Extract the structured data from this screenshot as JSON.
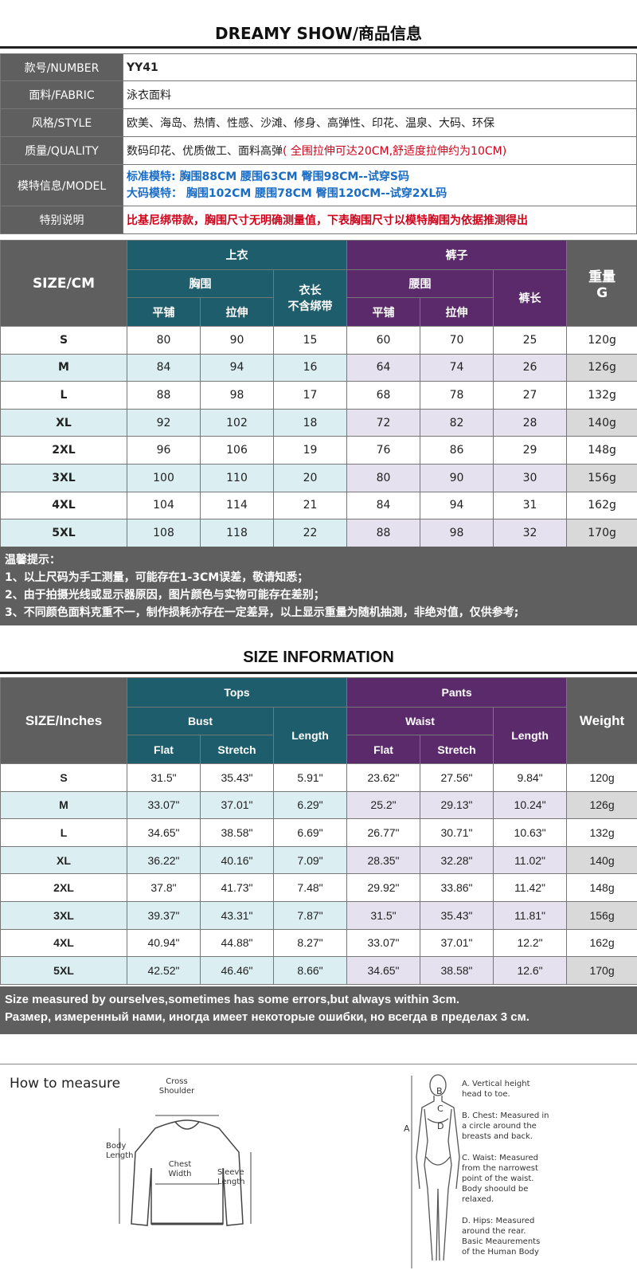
{
  "title_cn": "DREAMY SHOW/商品信息",
  "info": [
    {
      "label": "款号/NUMBER",
      "value": "YY41"
    },
    {
      "label": "面料/FABRIC",
      "value": "泳衣面料"
    },
    {
      "label": "风格/STYLE",
      "value": "欧美、海岛、热情、性感、沙滩、修身、高弹性、印花、温泉、大码、环保"
    },
    {
      "label": "质量/QUALITY",
      "value": "数码印花、优质做工、面料高弹",
      "value_red": "( 全围拉伸可达20CM,舒适度拉伸约为10CM)"
    },
    {
      "label": "模特信息/MODEL",
      "value": "标准模特: 胸围88CM 腰围63CM 臀围98CM--试穿S码",
      "value2": "大码模特：  胸围102CM 腰围78CM 臀围120CM--试穿2XL码"
    },
    {
      "label": "特别说明",
      "value": "比基尼绑带款，胸围尺寸无明确测量值，下表胸围尺寸以模特胸围为依据推测得出"
    }
  ],
  "cm_table": {
    "size_header": "SIZE/CM",
    "tops": "上衣",
    "bust": "胸围",
    "length_l1": "衣长",
    "length_l2": "不含绑带",
    "pants": "裤子",
    "waist": "腰围",
    "pants_length": "裤长",
    "weight_l1": "重量",
    "weight_l2": "G",
    "flat": "平铺",
    "stretch": "拉伸",
    "rows": [
      [
        "S",
        "80",
        "90",
        "15",
        "60",
        "70",
        "25",
        "120g"
      ],
      [
        "M",
        "84",
        "94",
        "16",
        "64",
        "74",
        "26",
        "126g"
      ],
      [
        "L",
        "88",
        "98",
        "17",
        "68",
        "78",
        "27",
        "132g"
      ],
      [
        "XL",
        "92",
        "102",
        "18",
        "72",
        "82",
        "28",
        "140g"
      ],
      [
        "2XL",
        "96",
        "106",
        "19",
        "76",
        "86",
        "29",
        "148g"
      ],
      [
        "3XL",
        "100",
        "110",
        "20",
        "80",
        "90",
        "30",
        "156g"
      ],
      [
        "4XL",
        "104",
        "114",
        "21",
        "84",
        "94",
        "31",
        "162g"
      ],
      [
        "5XL",
        "108",
        "118",
        "22",
        "88",
        "98",
        "32",
        "170g"
      ]
    ]
  },
  "notes_cn": [
    "温馨提示：",
    "1、以上尺码为手工测量，可能存在1-3CM误差，敬请知悉；",
    "2、由于拍摄光线或显示器原因，图片颜色与实物可能存在差别；",
    "3、不同颜色面料克重不一，制作损耗亦存在一定差异，以上显示重量为随机抽测，非绝对值，仅供参考;"
  ],
  "title_en": "SIZE INFORMATION",
  "in_table": {
    "size_header": "SIZE/Inches",
    "tops": "Tops",
    "bust": "Bust",
    "length": "Length",
    "pants": "Pants",
    "waist": "Waist",
    "pants_length": "Length",
    "weight": "Weight",
    "flat": "Flat",
    "stretch": "Stretch",
    "rows": [
      [
        "S",
        "31.5\"",
        "35.43\"",
        "5.91\"",
        "23.62\"",
        "27.56\"",
        "9.84\"",
        "120g"
      ],
      [
        "M",
        "33.07\"",
        "37.01\"",
        "6.29\"",
        "25.2\"",
        "29.13\"",
        "10.24\"",
        "126g"
      ],
      [
        "L",
        "34.65\"",
        "38.58\"",
        "6.69\"",
        "26.77\"",
        "30.71\"",
        "10.63\"",
        "132g"
      ],
      [
        "XL",
        "36.22\"",
        "40.16\"",
        "7.09\"",
        "28.35\"",
        "32.28\"",
        "11.02\"",
        "140g"
      ],
      [
        "2XL",
        "37.8\"",
        "41.73\"",
        "7.48\"",
        "29.92\"",
        "33.86\"",
        "11.42\"",
        "148g"
      ],
      [
        "3XL",
        "39.37\"",
        "43.31\"",
        "7.87\"",
        "31.5\"",
        "35.43\"",
        "11.81\"",
        "156g"
      ],
      [
        "4XL",
        "40.94\"",
        "44.88\"",
        "8.27\"",
        "33.07\"",
        "37.01\"",
        "12.2\"",
        "162g"
      ],
      [
        "5XL",
        "42.52\"",
        "46.46\"",
        "8.66\"",
        "34.65\"",
        "38.58\"",
        "12.6\"",
        "170g"
      ]
    ]
  },
  "notes_en": [
    "Size measured by ourselves,sometimes has some errors,but always within 3cm.",
    "Размер, измеренный нами, иногда имеет некоторые ошибки, но всегда в пределах 3 см."
  ],
  "measure": {
    "title": "How to measure",
    "cross_shoulder": "Cross Shoulder",
    "body_length": "Body Length",
    "chest_width": "Chest Width",
    "sleeve_length": "Sleeve Length",
    "marker_a": "A",
    "marker_b": "B",
    "marker_c": "C",
    "marker_d": "D",
    "list": [
      "A. Vertical height head to toe.",
      "B. Chest: Measured in a circle around the breasts and back.",
      "C. Waist: Measured from the narrowest point of the waist. Body shoould be relaxed.",
      "D. Hips: Measured around the rear. Basic Meaurements of the Human Body"
    ]
  }
}
